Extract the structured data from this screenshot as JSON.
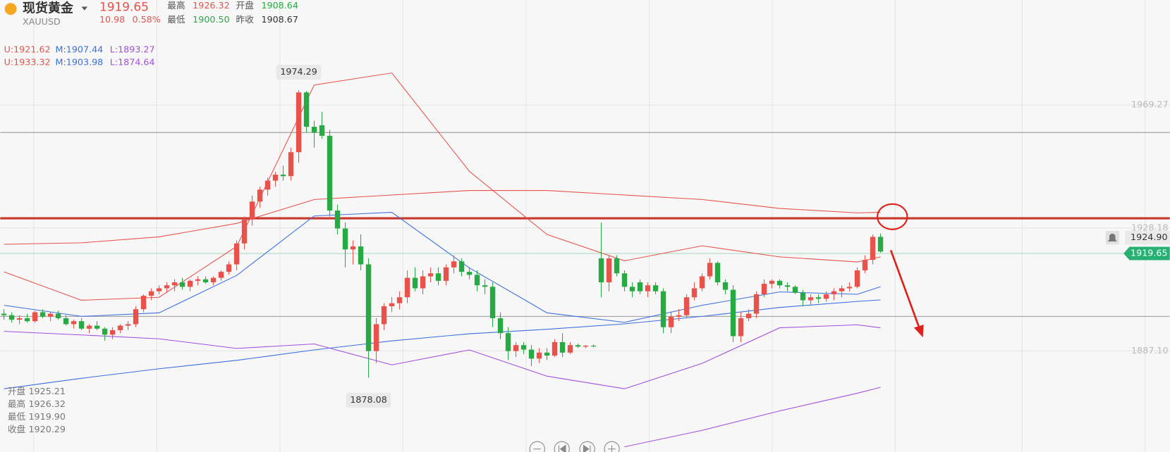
{
  "header": {
    "name": "现货黄金",
    "symbol": "XAUUSD",
    "price": "1919.65",
    "change": "10.98",
    "change_pct": "0.58%",
    "stats": [
      {
        "label": "最高",
        "value": "1926.32",
        "color": "#e8524a"
      },
      {
        "label": "开盘",
        "value": "1908.64",
        "color": "#27a943"
      },
      {
        "label": "最低",
        "value": "1900.50",
        "color": "#27a943"
      },
      {
        "label": "昨收",
        "value": "1908.67",
        "color": "#333333"
      }
    ]
  },
  "indicators": [
    [
      "U:1921.62",
      "M:1907.44",
      "L:1893.27"
    ],
    [
      "U:1933.32",
      "M:1903.98",
      "L:1874.64"
    ]
  ],
  "indicator_colors": [
    "#e8524a",
    "#3b6fe0",
    "#a34fe0"
  ],
  "ohlc_panel": [
    {
      "label": "开盘",
      "value": "1925.21"
    },
    {
      "label": "最高",
      "value": "1926.32"
    },
    {
      "label": "最低",
      "value": "1919.90"
    },
    {
      "label": "收盘",
      "value": "1920.29"
    }
  ],
  "chart_data": {
    "type": "candlestick",
    "up_color": "#e8524a",
    "down_color": "#27a943",
    "ylim": [
      1853.26,
      2004.4
    ],
    "yticks": [
      1969.27,
      1928.18,
      {
        "value": 1887.1,
        "label": "1887.10"
      }
    ],
    "grid": true,
    "high_label_index": 38,
    "low_label_index": 47,
    "ohlc": [
      [
        1899.5,
        1901,
        1897.5,
        1899
      ],
      [
        1899,
        1900,
        1896.5,
        1897.5
      ],
      [
        1897.5,
        1899,
        1896,
        1898
      ],
      [
        1898,
        1899.5,
        1896.5,
        1897
      ],
      [
        1897,
        1900.5,
        1896.5,
        1900
      ],
      [
        1900,
        1901,
        1898,
        1898.5
      ],
      [
        1898.5,
        1900,
        1897,
        1899.5
      ],
      [
        1899.5,
        1900.5,
        1897.5,
        1898
      ],
      [
        1898,
        1899,
        1895.5,
        1896
      ],
      [
        1896,
        1897.5,
        1894.5,
        1897
      ],
      [
        1897,
        1898,
        1894,
        1894.5
      ],
      [
        1894.5,
        1896,
        1893,
        1895.5
      ],
      [
        1895.5,
        1897,
        1894,
        1894.5
      ],
      [
        1894.5,
        1895,
        1890.5,
        1892.5
      ],
      [
        1892.5,
        1895,
        1891,
        1894
      ],
      [
        1894,
        1896,
        1893,
        1895.5
      ],
      [
        1895.5,
        1897,
        1894,
        1896
      ],
      [
        1896,
        1902,
        1895,
        1901
      ],
      [
        1901,
        1906,
        1900,
        1905.5
      ],
      [
        1905.5,
        1908,
        1904,
        1907
      ],
      [
        1907,
        1909,
        1906,
        1908
      ],
      [
        1908,
        1910,
        1906.5,
        1909
      ],
      [
        1909,
        1911,
        1907,
        1910
      ],
      [
        1910,
        1911.5,
        1907.5,
        1908.5
      ],
      [
        1908.5,
        1911,
        1907,
        1910.5
      ],
      [
        1910.5,
        1912,
        1909,
        1911
      ],
      [
        1911,
        1912,
        1909.5,
        1910
      ],
      [
        1910,
        1912,
        1909,
        1911.5
      ],
      [
        1911.5,
        1914,
        1910.5,
        1913.5
      ],
      [
        1913.5,
        1917,
        1912.5,
        1916
      ],
      [
        1916,
        1924,
        1914,
        1923
      ],
      [
        1923,
        1932,
        1921,
        1931
      ],
      [
        1931,
        1939,
        1929,
        1937
      ],
      [
        1937,
        1942,
        1935,
        1941
      ],
      [
        1941,
        1945,
        1939,
        1944
      ],
      [
        1944,
        1947,
        1942,
        1946
      ],
      [
        1946,
        1949,
        1944,
        1945.5
      ],
      [
        1945.5,
        1955,
        1944,
        1953.5
      ],
      [
        1953.5,
        1974.29,
        1950,
        1973.5
      ],
      [
        1973.5,
        1974,
        1960,
        1962
      ],
      [
        1962,
        1964,
        1955,
        1960
      ],
      [
        1962.5,
        1967,
        1958,
        1959
      ],
      [
        1959,
        1961,
        1932,
        1934
      ],
      [
        1934,
        1936,
        1926,
        1928
      ],
      [
        1928,
        1930,
        1915,
        1921
      ],
      [
        1921,
        1924,
        1916,
        1922
      ],
      [
        1922,
        1926,
        1914,
        1916
      ],
      [
        1916,
        1918,
        1878.08,
        1887
      ],
      [
        1887,
        1898,
        1883,
        1896
      ],
      [
        1896,
        1903,
        1894,
        1902
      ],
      [
        1902,
        1905,
        1900,
        1903
      ],
      [
        1903,
        1907,
        1901,
        1905
      ],
      [
        1905,
        1914,
        1903,
        1911.5
      ],
      [
        1911.5,
        1915,
        1907,
        1908
      ],
      [
        1908,
        1914,
        1906,
        1912
      ],
      [
        1912,
        1915,
        1910,
        1913
      ],
      [
        1913,
        1915,
        1909,
        1910.5
      ],
      [
        1910.5,
        1916,
        1909,
        1915
      ],
      [
        1915,
        1919,
        1913,
        1917
      ],
      [
        1917,
        1918,
        1912,
        1913.5
      ],
      [
        1913.5,
        1915,
        1911,
        1912.5
      ],
      [
        1912.5,
        1914,
        1907,
        1909
      ],
      [
        1909,
        1911,
        1906,
        1908.5
      ],
      [
        1908.5,
        1910,
        1895,
        1898
      ],
      [
        1898,
        1900,
        1891,
        1893
      ],
      [
        1893,
        1895,
        1884,
        1887
      ],
      [
        1887,
        1890,
        1885,
        1889
      ],
      [
        1889,
        1890,
        1886,
        1887.5
      ],
      [
        1887.5,
        1889,
        1882,
        1884.5
      ],
      [
        1884.5,
        1888,
        1883,
        1886.5
      ],
      [
        1886.5,
        1888,
        1884,
        1885.5
      ],
      [
        1885.5,
        1891,
        1885,
        1890
      ],
      [
        1890,
        1893,
        1885,
        1886.5
      ],
      [
        1886.5,
        1890,
        1886,
        1889
      ],
      [
        1889,
        1889.5,
        1888,
        1888.5
      ],
      [
        1888.5,
        1889,
        1888,
        1888.8
      ],
      [
        1888.8,
        1889.2,
        1888.3,
        1888.6
      ],
      [
        1918,
        1930,
        1905,
        1910
      ],
      [
        1910,
        1919,
        1907,
        1918
      ],
      [
        1918,
        1919,
        1912,
        1913
      ],
      [
        1913,
        1914,
        1907,
        1908.5
      ],
      [
        1908.5,
        1910,
        1905,
        1907
      ],
      [
        1910,
        1911,
        1906,
        1907
      ],
      [
        1907,
        1910,
        1905,
        1909
      ],
      [
        1909,
        1910,
        1906,
        1907
      ],
      [
        1907,
        1908,
        1893,
        1895
      ],
      [
        1895,
        1900,
        1893,
        1898.5
      ],
      [
        1898.5,
        1901,
        1897,
        1899
      ],
      [
        1899,
        1906,
        1898,
        1905
      ],
      [
        1905,
        1910,
        1904,
        1908
      ],
      [
        1908,
        1913,
        1907,
        1912
      ],
      [
        1912,
        1918,
        1911,
        1916.5
      ],
      [
        1916.5,
        1917,
        1909,
        1910
      ],
      [
        1910,
        1911,
        1906,
        1907.5
      ],
      [
        1907.5,
        1909,
        1890,
        1892
      ],
      [
        1892,
        1900,
        1890,
        1898
      ],
      [
        1898,
        1901,
        1897,
        1899.5
      ],
      [
        1899.5,
        1907,
        1898,
        1906
      ],
      [
        1906,
        1911,
        1905,
        1909.5
      ],
      [
        1909.5,
        1911,
        1908,
        1910.5
      ],
      [
        1910.5,
        1911,
        1908,
        1909
      ],
      [
        1909,
        1910,
        1907,
        1908.5
      ],
      [
        1908.5,
        1909,
        1906,
        1906.5
      ],
      [
        1906.5,
        1907.5,
        1902,
        1904
      ],
      [
        1904,
        1906,
        1902.5,
        1905
      ],
      [
        1905,
        1906,
        1903,
        1904.5
      ],
      [
        1904.5,
        1907,
        1903.5,
        1906
      ],
      [
        1906,
        1908,
        1904,
        1907
      ],
      [
        1907,
        1909,
        1905,
        1908
      ],
      [
        1908,
        1910,
        1907,
        1908.5
      ],
      [
        1908.5,
        1915,
        1908,
        1914
      ],
      [
        1914,
        1919,
        1913,
        1917.5
      ],
      [
        1917.5,
        1926,
        1916,
        1925.21
      ],
      [
        1925.21,
        1926.32,
        1919.9,
        1920.29
      ]
    ],
    "overlays": [
      {
        "color": "#e8524a",
        "x": [
          0,
          10,
          20,
          30,
          40,
          50,
          60,
          70,
          80,
          90,
          100,
          110,
          113
        ],
        "values": [
          1913.5,
          1904,
          1905,
          1922,
          1976,
          1980,
          1947.1,
          1926,
          1917.2,
          1922.2,
          1918.5,
          1916.8,
          1918.5
        ]
      },
      {
        "color": "#e8524a",
        "x": [
          0,
          10,
          20,
          30,
          40,
          50,
          60,
          70,
          80,
          90,
          100,
          110,
          113
        ],
        "values": [
          1922.7,
          1923.2,
          1925.2,
          1929.7,
          1937.7,
          1939.2,
          1940.7,
          1940.7,
          1939.2,
          1937.7,
          1934.7,
          1933.2,
          1933.4
        ]
      },
      {
        "color": "#3b6fe0",
        "x": [
          0,
          10,
          20,
          30,
          40,
          50,
          60,
          70,
          80,
          90,
          100,
          110,
          113
        ],
        "values": [
          1902.3,
          1898.6,
          1899.8,
          1912.3,
          1932.2,
          1933.4,
          1914.8,
          1899.8,
          1896.6,
          1902.3,
          1906.8,
          1906,
          1908.5
        ]
      },
      {
        "color": "#3b6fe0",
        "x": [
          0,
          10,
          20,
          30,
          40,
          50,
          60,
          70,
          80,
          90,
          100,
          110,
          113
        ],
        "values": [
          1874.4,
          1877.9,
          1881.1,
          1883.9,
          1887.4,
          1890.4,
          1892.8,
          1894.3,
          1896.1,
          1898.6,
          1901.6,
          1903.6,
          1904.1
        ]
      },
      {
        "color": "#a34fe0",
        "x": [
          0,
          10,
          20,
          30,
          40,
          50,
          60,
          70,
          80,
          90,
          100,
          110,
          113
        ],
        "values": [
          1893.6,
          1892.4,
          1891.1,
          1887.9,
          1889.4,
          1882.4,
          1887.4,
          1878.6,
          1874.4,
          1882.9,
          1894.8,
          1895.8,
          1894.8
        ]
      },
      {
        "color": "#a34fe0",
        "x": [
          0,
          10,
          20,
          30,
          40,
          50,
          60,
          70,
          80,
          90,
          100,
          110,
          113
        ],
        "values": [
          null,
          null,
          null,
          null,
          null,
          null,
          null,
          null,
          1855,
          1860.5,
          1867,
          1872.9,
          1874.9
        ]
      }
    ],
    "key_level": {
      "value": 1931.4,
      "color": "#c9362b"
    },
    "hlines": [
      {
        "value": 1960.1,
        "color": "#999999"
      },
      {
        "value": 1898.6,
        "color": "#999999"
      }
    ],
    "alert_line": {
      "value": 1924.9,
      "label": "1924.90"
    },
    "last_price": 1919.65,
    "last_price_color": "#27b072"
  }
}
